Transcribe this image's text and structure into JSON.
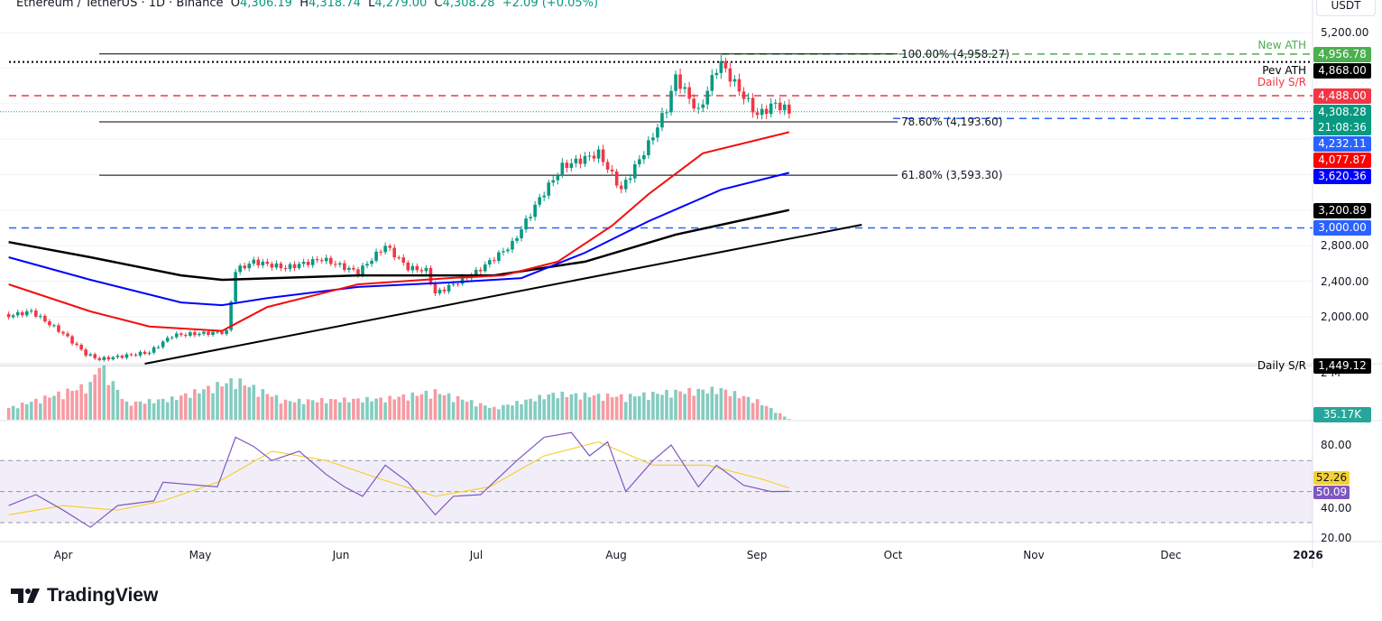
{
  "header": {
    "symbol": "Ethereum / TetherUS · 1D · Binance",
    "o_label": "O",
    "o": "4,306.19",
    "h_label": "H",
    "h": "4,318.74",
    "l_label": "L",
    "l": "4,279.00",
    "c_label": "C",
    "c": "4,308.28",
    "change": "+2.09 (+0.05%)"
  },
  "currency": "USDT",
  "logo": "TradingView",
  "colors": {
    "up": "#089981",
    "down": "#f23645",
    "sma_red": "#f20d0d",
    "sma_blue": "#0000ff",
    "sma_black": "#000000",
    "rsi": "#7e57c2",
    "rsi_ma": "#f5d137"
  },
  "chart_data": {
    "type": "candlestick",
    "price_axis": {
      "ticks": [
        "5,200.00",
        "2,800.00",
        "2,400.00",
        "2,000.00"
      ],
      "range": [
        1380,
        5300
      ]
    },
    "time_axis": {
      "ticks": [
        "Apr",
        "May",
        "Jun",
        "Jul",
        "Aug",
        "Sep",
        "Oct",
        "Nov",
        "Dec",
        "2026"
      ]
    },
    "closes": [
      [
        "Mar 20",
        2010
      ],
      [
        "Mar 25",
        2060
      ],
      [
        "Apr 1",
        1810
      ],
      [
        "Apr 6",
        1580
      ],
      [
        "Apr 9",
        1520
      ],
      [
        "Apr 20",
        1600
      ],
      [
        "Apr 25",
        1790
      ],
      [
        "May 7",
        1830
      ],
      [
        "May 9",
        2520
      ],
      [
        "May 13",
        2620
      ],
      [
        "May 20",
        2550
      ],
      [
        "May 28",
        2650
      ],
      [
        "Jun 5",
        2500
      ],
      [
        "Jun 11",
        2800
      ],
      [
        "Jun 16",
        2550
      ],
      [
        "Jun 20",
        2520
      ],
      [
        "Jun 22",
        2260
      ],
      [
        "Jul 1",
        2500
      ],
      [
        "Jul 9",
        2820
      ],
      [
        "Jul 15",
        3330
      ],
      [
        "Jul 20",
        3690
      ],
      [
        "Jul 28",
        3840
      ],
      [
        "Aug 2",
        3430
      ],
      [
        "Aug 8",
        3940
      ],
      [
        "Aug 12",
        4350
      ],
      [
        "Aug 14",
        4700
      ],
      [
        "Aug 19",
        4300
      ],
      [
        "Aug 23",
        4800
      ],
      [
        "Aug 24",
        4850
      ],
      [
        "Aug 28",
        4550
      ],
      [
        "Sep 1",
        4270
      ],
      [
        "Sep 5",
        4400
      ],
      [
        "Sep 8",
        4308
      ]
    ],
    "sma_red": [
      [
        "Mar 20",
        2365
      ],
      [
        "Apr 7",
        2060
      ],
      [
        "Apr 20",
        1890
      ],
      [
        "May 6",
        1840
      ],
      [
        "May 16",
        2110
      ],
      [
        "Jun 5",
        2365
      ],
      [
        "Jun 25",
        2435
      ],
      [
        "Jul 7",
        2465
      ],
      [
        "Jul 19",
        2620
      ],
      [
        "Jul 31",
        3025
      ],
      [
        "Aug 8",
        3380
      ],
      [
        "Aug 20",
        3840
      ],
      [
        "Sep 8",
        4077.87
      ]
    ],
    "sma_blue": [
      [
        "Mar 20",
        2670
      ],
      [
        "Apr 7",
        2415
      ],
      [
        "Apr 27",
        2160
      ],
      [
        "May 6",
        2130
      ],
      [
        "May 16",
        2210
      ],
      [
        "Jun 5",
        2335
      ],
      [
        "Jun 25",
        2385
      ],
      [
        "Jul 11",
        2435
      ],
      [
        "Jul 25",
        2720
      ],
      [
        "Aug 8",
        3075
      ],
      [
        "Aug 24",
        3430
      ],
      [
        "Sep 8",
        3620.36
      ]
    ],
    "sma_black": [
      [
        "Mar 20",
        2840
      ],
      [
        "Apr 7",
        2670
      ],
      [
        "Apr 27",
        2465
      ],
      [
        "May 6",
        2415
      ],
      [
        "Jun 5",
        2465
      ],
      [
        "Jul 5",
        2465
      ],
      [
        "Jul 25",
        2620
      ],
      [
        "Aug 14",
        2925
      ],
      [
        "Sep 8",
        3200.89
      ]
    ],
    "trendline": [
      [
        "Apr 19",
        1470
      ],
      [
        "Sep 24",
        3035
      ]
    ],
    "volume_axis": {
      "ticks": [
        "2 M"
      ]
    },
    "volume_k": [
      [
        "Mar 20",
        500
      ],
      [
        "Apr 7",
        1500
      ],
      [
        "Apr 9",
        2400
      ],
      [
        "Apr 15",
        700
      ],
      [
        "Apr 25",
        900
      ],
      [
        "May 9",
        1700
      ],
      [
        "May 20",
        800
      ],
      [
        "Jun 11",
        900
      ],
      [
        "Jun 22",
        1200
      ],
      [
        "Jul 5",
        500
      ],
      [
        "Jul 18",
        1100
      ],
      [
        "Aug 3",
        1000
      ],
      [
        "Aug 14",
        1200
      ],
      [
        "Aug 24",
        1300
      ],
      [
        "Sep 1",
        800
      ],
      [
        "Sep 8",
        35.17
      ]
    ],
    "volume_last": "35.17K",
    "rsi_axis": {
      "ticks": [
        "80.00",
        "40.00",
        "20.00"
      ],
      "range": [
        15,
        95
      ],
      "band": [
        30,
        70
      ]
    },
    "rsi": [
      [
        "Mar 20",
        41
      ],
      [
        "Mar 26",
        48
      ],
      [
        "Apr 1",
        38
      ],
      [
        "Apr 7",
        27
      ],
      [
        "Apr 13",
        41
      ],
      [
        "Apr 21",
        44
      ],
      [
        "Apr 23",
        56
      ],
      [
        "May 5",
        53
      ],
      [
        "May 9",
        85
      ],
      [
        "May 13",
        79
      ],
      [
        "May 17",
        70
      ],
      [
        "May 23",
        76
      ],
      [
        "May 29",
        61
      ],
      [
        "Jun 2",
        53
      ],
      [
        "Jun 6",
        47
      ],
      [
        "Jun 11",
        67
      ],
      [
        "Jun 16",
        56
      ],
      [
        "Jun 22",
        35
      ],
      [
        "Jun 26",
        47
      ],
      [
        "Jul 2",
        48
      ],
      [
        "Jul 10",
        70
      ],
      [
        "Jul 16",
        85
      ],
      [
        "Jul 22",
        88
      ],
      [
        "Jul 26",
        73
      ],
      [
        "Jul 30",
        82
      ],
      [
        "Aug 3",
        50
      ],
      [
        "Aug 9",
        70
      ],
      [
        "Aug 13",
        80
      ],
      [
        "Aug 19",
        53
      ],
      [
        "Aug 23",
        67
      ],
      [
        "Aug 29",
        54
      ],
      [
        "Sep 4",
        50
      ],
      [
        "Sep 8",
        50.09
      ]
    ],
    "rsi_ma": [
      [
        "Mar 20",
        35
      ],
      [
        "Apr 1",
        41
      ],
      [
        "Apr 13",
        38
      ],
      [
        "Apr 23",
        44
      ],
      [
        "May 5",
        56
      ],
      [
        "May 17",
        76
      ],
      [
        "May 29",
        70
      ],
      [
        "Jun 10",
        58
      ],
      [
        "Jun 22",
        47
      ],
      [
        "Jul 4",
        53
      ],
      [
        "Jul 16",
        73
      ],
      [
        "Jul 28",
        82
      ],
      [
        "Aug 9",
        67
      ],
      [
        "Aug 21",
        67
      ],
      [
        "Sep 2",
        58
      ],
      [
        "Sep 8",
        52.26
      ]
    ],
    "levels": [
      {
        "name": "New ATH",
        "value": 4956.78,
        "label": "4,956.78",
        "color": "#4caf50",
        "text": "#fff",
        "style": "dashed-green"
      },
      {
        "name": "Pev ATH",
        "value": 4868.0,
        "label": "4,868.00",
        "color": "#000000",
        "text": "#fff",
        "style": "dotted-black"
      },
      {
        "name": "Daily S/R",
        "value": 4488.0,
        "label": "4,488.00",
        "color": "#f23645",
        "text": "#fff",
        "style": "dashed-red"
      },
      {
        "name": "",
        "value": 4308.28,
        "label": "4,308.28",
        "sub": "21:08:36",
        "color": "#089981",
        "text": "#fff",
        "style": "dotted-teal"
      },
      {
        "name": "",
        "value": 4232.11,
        "label": "4,232.11",
        "color": "#2962ff",
        "text": "#fff",
        "style": "dashed-blue"
      },
      {
        "name": "",
        "value": 4077.87,
        "label": "4,077.87",
        "color": "#ff0000",
        "text": "#fff",
        "style": "none"
      },
      {
        "name": "",
        "value": 3620.36,
        "label": "3,620.36",
        "color": "#0000ff",
        "text": "#fff",
        "style": "none"
      },
      {
        "name": "",
        "value": 3200.89,
        "label": "3,200.89",
        "color": "#000000",
        "text": "#fff",
        "style": "none"
      },
      {
        "name": "",
        "value": 3000.0,
        "label": "3,000.00",
        "color": "#2962ff",
        "text": "#fff",
        "style": "dashed-blue"
      },
      {
        "name": "Daily S/R",
        "value": 1449.12,
        "label": "1,449.12",
        "color": "#000000",
        "text": "#fff",
        "style": "solid-gray"
      }
    ],
    "fib": [
      {
        "label": "100.00% (4,958.27)",
        "value": 4958.27
      },
      {
        "label": "78.60% (4,193.60)",
        "value": 4193.6
      },
      {
        "label": "61.80% (3,593.30)",
        "value": 3593.3
      }
    ],
    "rsi_tags": [
      {
        "label": "52.26",
        "color": "#f5d137",
        "text": "#131722"
      },
      {
        "label": "50.09",
        "color": "#7e57c2",
        "text": "#fff"
      }
    ]
  }
}
